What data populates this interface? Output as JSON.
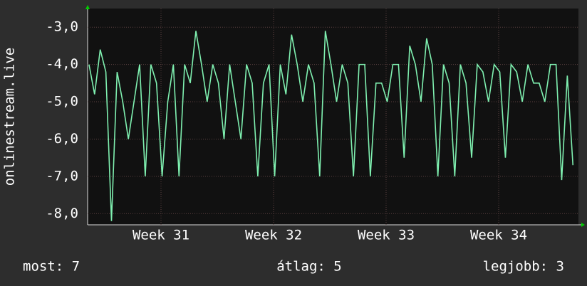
{
  "chart_data": {
    "type": "line",
    "y_label": "onlinestream.live",
    "x": [
      30.36,
      30.41,
      30.46,
      30.51,
      30.56,
      30.61,
      30.66,
      30.71,
      30.76,
      30.81,
      30.86,
      30.91,
      30.96,
      31.01,
      31.06,
      31.11,
      31.16,
      31.21,
      31.26,
      31.31,
      31.36,
      31.41,
      31.46,
      31.51,
      31.56,
      31.61,
      31.66,
      31.71,
      31.76,
      31.81,
      31.86,
      31.91,
      31.96,
      32.01,
      32.06,
      32.11,
      32.16,
      32.21,
      32.26,
      32.31,
      32.36,
      32.41,
      32.46,
      32.51,
      32.56,
      32.61,
      32.66,
      32.71,
      32.76,
      32.81,
      32.86,
      32.91,
      32.96,
      33.01,
      33.06,
      33.11,
      33.16,
      33.21,
      33.26,
      33.31,
      33.36,
      33.41,
      33.46,
      33.51,
      33.56,
      33.61,
      33.66,
      33.71,
      33.76,
      33.81,
      33.86,
      33.91,
      33.96,
      34.01,
      34.06,
      34.11,
      34.16,
      34.21,
      34.26,
      34.31,
      34.36,
      34.41,
      34.46,
      34.51,
      34.56,
      34.61,
      34.66
    ],
    "values": [
      -4,
      -4.8,
      -3.6,
      -4.2,
      -8.2,
      -4.2,
      -5,
      -6,
      -5,
      -4,
      -7,
      -4,
      -4.5,
      -7,
      -5,
      -4,
      -7,
      -4,
      -4.5,
      -3.1,
      -4,
      -5,
      -4,
      -4.5,
      -6,
      -4,
      -5,
      -6,
      -4,
      -4.5,
      -7,
      -4.5,
      -4,
      -7,
      -4,
      -4.8,
      -3.2,
      -4,
      -5,
      -4,
      -4.5,
      -7,
      -3.1,
      -4,
      -5,
      -4,
      -4.5,
      -7,
      -4,
      -4,
      -7,
      -4.5,
      -4.5,
      -5,
      -4,
      -4,
      -6.5,
      -3.5,
      -4,
      -5,
      -3.3,
      -4,
      -7,
      -4,
      -4.5,
      -7,
      -4,
      -4.5,
      -6.5,
      -4,
      -4.2,
      -5,
      -4,
      -4.2,
      -6.5,
      -4,
      -4.2,
      -5,
      -4,
      -4.5,
      -4.5,
      -5,
      -4,
      -4,
      -7.1,
      -4.3,
      -6.7
    ],
    "color": "#7ff0b0",
    "xlim": [
      30.348,
      34.709
    ],
    "xticks": [
      {
        "value": 31,
        "label": "Week 31"
      },
      {
        "value": 32,
        "label": "Week 32"
      },
      {
        "value": 33,
        "label": "Week 33"
      },
      {
        "value": 34,
        "label": "Week 34"
      }
    ],
    "ylim": [
      -8.3,
      -2.5
    ],
    "yticks": [
      {
        "value": -8,
        "label": "-8,0"
      },
      {
        "value": -7,
        "label": "-7,0"
      },
      {
        "value": -6,
        "label": "-6,0"
      },
      {
        "value": -5,
        "label": "-5,0"
      },
      {
        "value": -4,
        "label": "-4,0"
      },
      {
        "value": -3,
        "label": "-3,0"
      }
    ],
    "grid": true,
    "stats": [
      "most: 7",
      "átlag: 5",
      "legjobb: 3"
    ]
  }
}
